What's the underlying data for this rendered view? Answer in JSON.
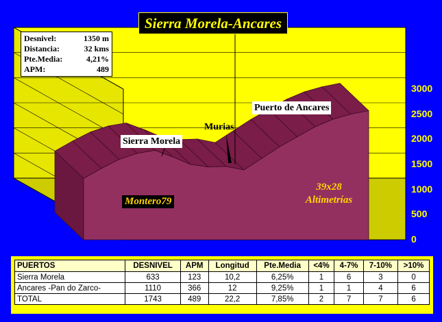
{
  "title": "Sierra Morela-Ancares",
  "stats": [
    {
      "label": "Desnivel:",
      "value": "1350 m"
    },
    {
      "label": "Distancia:",
      "value": "32 kms"
    },
    {
      "label": "Pte.Media:",
      "value": "4,21%"
    },
    {
      "label": "APM:",
      "value": "489"
    }
  ],
  "labels": {
    "sierra": "Sierra Morela",
    "murias": "Murias",
    "ancares": "Puerto de Ancares"
  },
  "watermark": {
    "line1": "39x28",
    "line2": "Altimetrías",
    "author": "Montero79"
  },
  "colors": {
    "background": "#0000ff",
    "plot": "#ffff00",
    "profile": "#8b2252",
    "table_bg": "#ffff00"
  },
  "chart_data": {
    "type": "area",
    "ylim": [
      0,
      3000
    ],
    "yticks": [
      "0",
      "500",
      "1000",
      "1500",
      "2000",
      "2500",
      "3000"
    ],
    "grid": true,
    "x_km": [
      0,
      2,
      4,
      6,
      8,
      10,
      12,
      14,
      16,
      18,
      20,
      22,
      24,
      26,
      28,
      30,
      32
    ],
    "elevation": [
      1220,
      1420,
      1600,
      1720,
      1780,
      1650,
      1500,
      1450,
      1460,
      1390,
      1620,
      1850,
      2050,
      2250,
      2400,
      2500,
      2570
    ],
    "annotations": [
      {
        "text": "Sierra Morela",
        "x_km": 8
      },
      {
        "text": "Murias",
        "x_km": 18
      },
      {
        "text": "Puerto de Ancares",
        "x_km": 30
      }
    ]
  },
  "table": {
    "headers": [
      "PUERTOS",
      "DESNIVEL",
      "APM",
      "Longitud",
      "Pte.Media",
      "<4%",
      "4-7%",
      "7-10%",
      ">10%"
    ],
    "rows": [
      [
        "Sierra Morela",
        "633",
        "123",
        "10,2",
        "6,25%",
        "1",
        "6",
        "3",
        "0"
      ],
      [
        "Ancares -Pan do Zarco-",
        "1110",
        "366",
        "12",
        "9,25%",
        "1",
        "1",
        "4",
        "6"
      ],
      [
        "TOTAL",
        "1743",
        "489",
        "22,2",
        "7,85%",
        "2",
        "7",
        "7",
        "6"
      ]
    ]
  }
}
